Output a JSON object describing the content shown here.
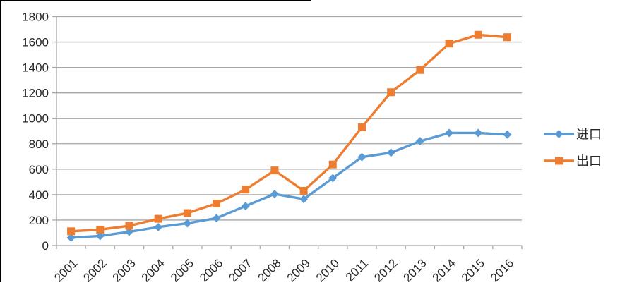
{
  "chart_data": {
    "type": "line",
    "title": "",
    "xlabel": "",
    "ylabel": "",
    "categories": [
      "2001",
      "2002",
      "2003",
      "2004",
      "2005",
      "2006",
      "2007",
      "2008",
      "2009",
      "2010",
      "2011",
      "2012",
      "2013",
      "2014",
      "2015",
      "2016"
    ],
    "series": [
      {
        "key": "import",
        "name": "进口",
        "marker": "diamond",
        "color": "#5B9BD5",
        "values": [
          62,
          75,
          108,
          145,
          175,
          215,
          310,
          405,
          365,
          530,
          695,
          730,
          820,
          885,
          885,
          872
        ]
      },
      {
        "key": "export",
        "name": "出口",
        "marker": "square",
        "color": "#ED7D31",
        "values": [
          112,
          125,
          155,
          210,
          255,
          330,
          440,
          590,
          430,
          637,
          930,
          1205,
          1380,
          1588,
          1657,
          1638
        ]
      }
    ],
    "ylim": [
      0,
      1800
    ],
    "yticks": [
      0,
      200,
      400,
      600,
      800,
      1000,
      1200,
      1400,
      1600,
      1800
    ],
    "grid": true,
    "legend_position": "right",
    "x_label_rotation_deg": -45
  },
  "style": {
    "gridline_color": "#A6A6A6",
    "axis_line_color": "#A6A6A6",
    "tick_label_color": "#262626",
    "legend_text_color": "#262626",
    "background": "#ffffff"
  }
}
